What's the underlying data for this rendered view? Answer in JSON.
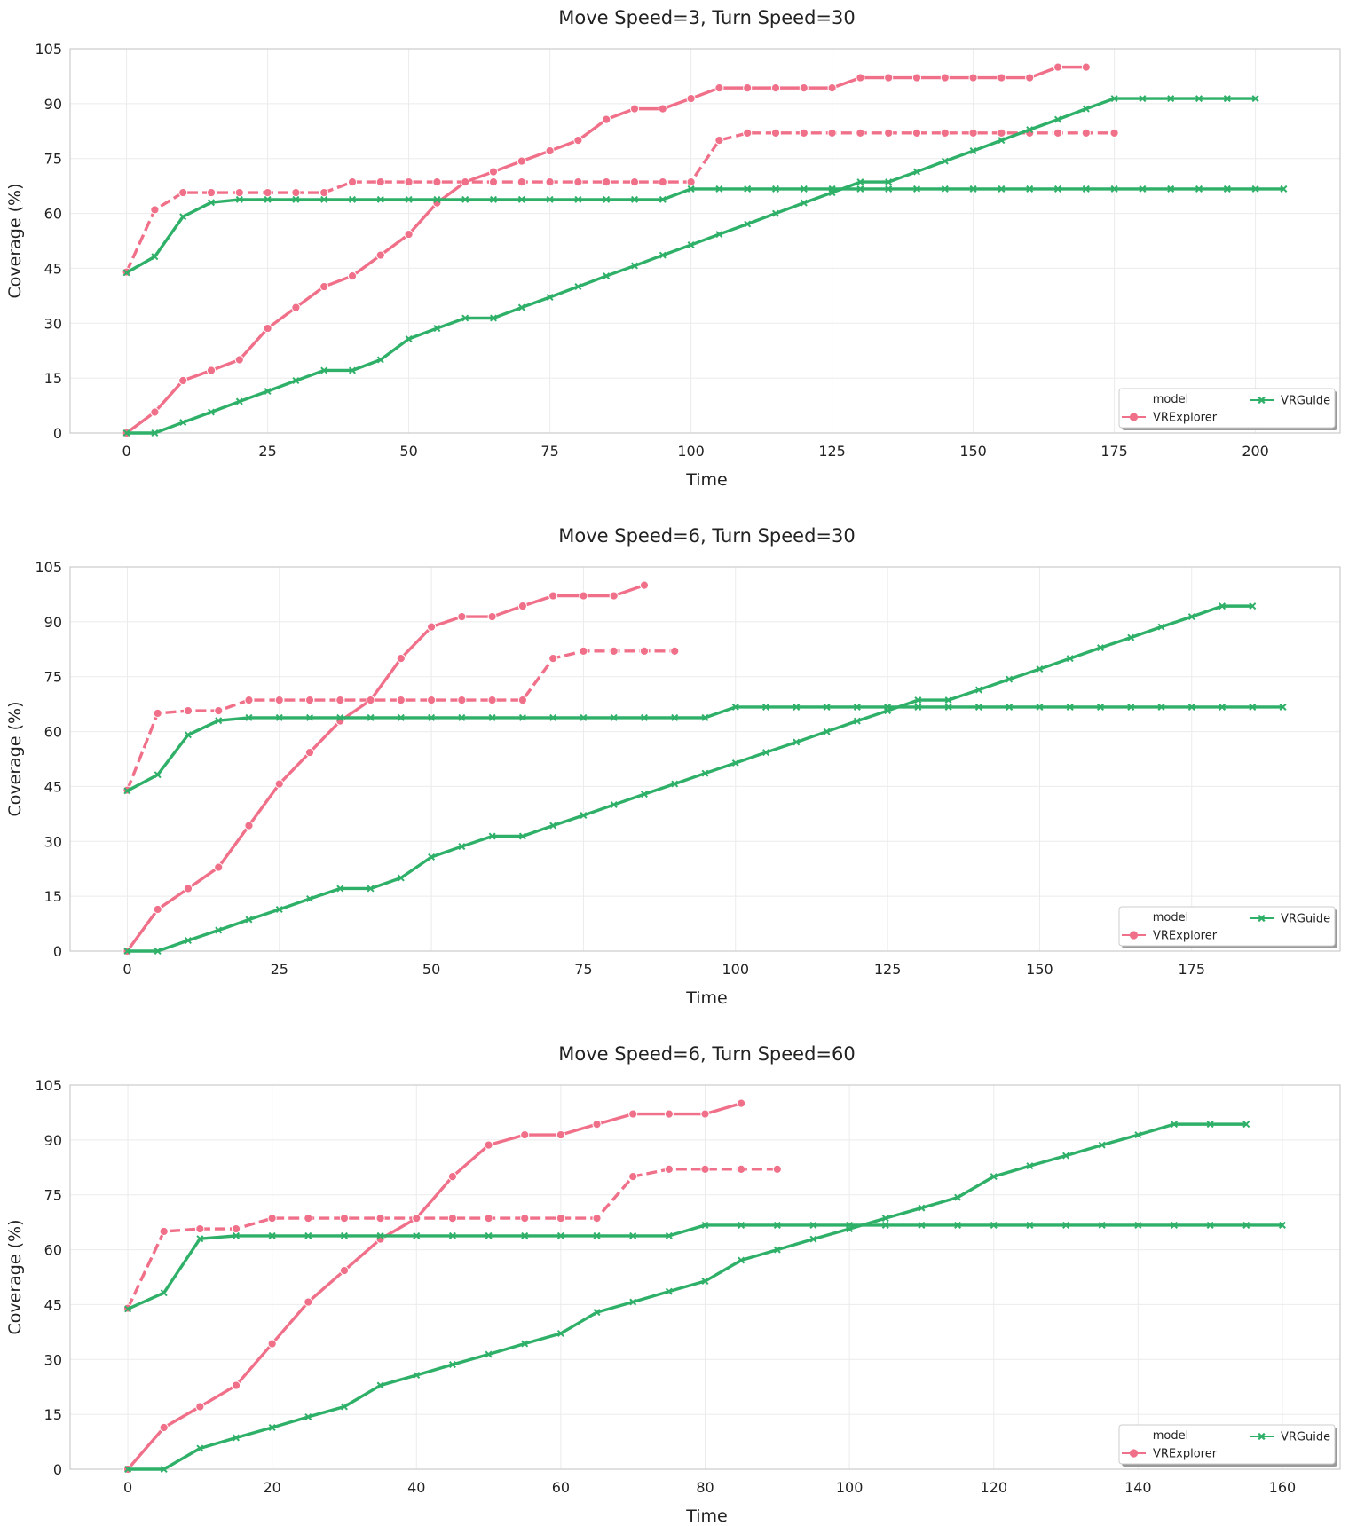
{
  "chart_data": [
    {
      "type": "line",
      "title": "Move Speed=3, Turn Speed=30",
      "xlabel": "Time",
      "ylabel": "Coverage (%)",
      "xlim": [
        -10,
        215
      ],
      "ylim": [
        0,
        105
      ],
      "xticks": [
        0,
        25,
        50,
        75,
        100,
        125,
        150,
        175,
        200
      ],
      "yticks": [
        0,
        15,
        30,
        45,
        60,
        75,
        90,
        105
      ],
      "grid": true,
      "legend": {
        "title": "model",
        "placement": "lower-right",
        "entries": [
          "VRExplorer",
          "VRGuide"
        ]
      },
      "series": [
        {
          "model": "VRExplorer",
          "color": "#f0708a",
          "marker": "circle",
          "linestyle": "solid",
          "x": [
            0,
            5,
            10,
            15,
            20,
            25,
            30,
            35,
            40,
            45,
            50,
            55,
            60,
            65,
            70,
            75,
            80,
            85,
            90,
            95,
            100,
            105,
            110,
            115,
            120,
            125,
            130,
            135,
            140,
            145,
            150,
            155,
            160,
            165,
            170
          ],
          "y": [
            0,
            5.7,
            14.3,
            17.1,
            20,
            28.6,
            34.3,
            40,
            42.9,
            48.6,
            54.3,
            62.9,
            68.6,
            71.4,
            74.3,
            77.1,
            80,
            85.7,
            88.6,
            88.6,
            91.4,
            94.3,
            94.3,
            94.3,
            94.3,
            94.3,
            97.1,
            97.1,
            97.1,
            97.1,
            97.1,
            97.1,
            97.1,
            100,
            100
          ]
        },
        {
          "model": "VRExplorer",
          "color": "#f0708a",
          "marker": "circle",
          "linestyle": "dashed",
          "x": [
            0,
            5,
            10,
            15,
            20,
            25,
            30,
            35,
            40,
            45,
            50,
            55,
            60,
            65,
            70,
            75,
            80,
            85,
            90,
            95,
            100,
            105,
            110,
            115,
            120,
            125,
            130,
            135,
            140,
            145,
            150,
            155,
            160,
            165,
            170,
            175
          ],
          "y": [
            44,
            61,
            65.7,
            65.7,
            65.7,
            65.7,
            65.7,
            65.7,
            68.6,
            68.6,
            68.6,
            68.6,
            68.6,
            68.6,
            68.6,
            68.6,
            68.6,
            68.6,
            68.6,
            68.6,
            68.6,
            80,
            82,
            82,
            82,
            82,
            82,
            82,
            82,
            82,
            82,
            82,
            82,
            82,
            82,
            82
          ]
        },
        {
          "model": "VRGuide",
          "color": "#2fb068",
          "marker": "x",
          "linestyle": "solid",
          "x": [
            0,
            5,
            10,
            15,
            20,
            25,
            30,
            35,
            40,
            45,
            50,
            55,
            60,
            65,
            70,
            75,
            80,
            85,
            90,
            95,
            100,
            105,
            110,
            115,
            120,
            125,
            130,
            135,
            140,
            145,
            150,
            155,
            160,
            165,
            170,
            175,
            180,
            185,
            190,
            195,
            200
          ],
          "y": [
            0,
            0,
            2.9,
            5.7,
            8.6,
            11.4,
            14.3,
            17.1,
            17.1,
            20,
            25.7,
            28.6,
            31.4,
            31.4,
            34.3,
            37.1,
            40,
            42.9,
            45.7,
            48.6,
            51.4,
            54.3,
            57.1,
            60,
            62.9,
            65.7,
            68.6,
            68.6,
            71.4,
            74.3,
            77.1,
            80,
            82.9,
            85.7,
            88.6,
            91.4,
            91.4,
            91.4,
            91.4,
            91.4,
            91.4
          ]
        },
        {
          "model": "VRGuide",
          "color": "#2fb068",
          "marker": "x",
          "linestyle": "solid",
          "x": [
            0,
            5,
            10,
            15,
            20,
            25,
            30,
            35,
            40,
            45,
            50,
            55,
            60,
            65,
            70,
            75,
            80,
            85,
            90,
            95,
            100,
            105,
            110,
            115,
            120,
            125,
            130,
            135,
            140,
            145,
            150,
            155,
            160,
            165,
            170,
            175,
            180,
            185,
            190,
            195,
            200,
            205
          ],
          "y": [
            43.8,
            48.2,
            59.1,
            63,
            63.8,
            63.8,
            63.8,
            63.8,
            63.8,
            63.8,
            63.8,
            63.8,
            63.8,
            63.8,
            63.8,
            63.8,
            63.8,
            63.8,
            63.8,
            63.8,
            66.7,
            66.7,
            66.7,
            66.7,
            66.7,
            66.7,
            66.7,
            66.7,
            66.7,
            66.7,
            66.7,
            66.7,
            66.7,
            66.7,
            66.7,
            66.7,
            66.7,
            66.7,
            66.7,
            66.7,
            66.7,
            66.7
          ]
        }
      ]
    },
    {
      "type": "line",
      "title": "Move Speed=6, Turn Speed=30",
      "xlabel": "Time",
      "ylabel": "Coverage (%)",
      "xlim": [
        -9.4,
        199.4
      ],
      "ylim": [
        0,
        105
      ],
      "xticks": [
        0,
        25,
        50,
        75,
        100,
        125,
        150,
        175
      ],
      "yticks": [
        0,
        15,
        30,
        45,
        60,
        75,
        90,
        105
      ],
      "grid": true,
      "legend": {
        "title": "model",
        "placement": "lower-right",
        "entries": [
          "VRExplorer",
          "VRGuide"
        ]
      },
      "series": [
        {
          "model": "VRExplorer",
          "color": "#f0708a",
          "marker": "circle",
          "linestyle": "solid",
          "x": [
            0,
            5,
            10,
            15,
            20,
            25,
            30,
            35,
            40,
            45,
            50,
            55,
            60,
            65,
            70,
            75,
            80,
            85
          ],
          "y": [
            0,
            11.4,
            17.1,
            22.9,
            34.3,
            45.7,
            54.3,
            62.9,
            68.6,
            80,
            88.6,
            91.4,
            91.4,
            94.3,
            97.1,
            97.1,
            97.1,
            100
          ]
        },
        {
          "model": "VRExplorer",
          "color": "#f0708a",
          "marker": "circle",
          "linestyle": "dashed",
          "x": [
            0,
            5,
            10,
            15,
            20,
            25,
            30,
            35,
            40,
            45,
            50,
            55,
            60,
            65,
            70,
            75,
            80,
            85,
            90
          ],
          "y": [
            44,
            65,
            65.7,
            65.7,
            68.6,
            68.6,
            68.6,
            68.6,
            68.6,
            68.6,
            68.6,
            68.6,
            68.6,
            68.6,
            80,
            82,
            82,
            82,
            82
          ]
        },
        {
          "model": "VRGuide",
          "color": "#2fb068",
          "marker": "x",
          "linestyle": "solid",
          "x": [
            0,
            5,
            10,
            15,
            20,
            25,
            30,
            35,
            40,
            45,
            50,
            55,
            60,
            65,
            70,
            75,
            80,
            85,
            90,
            95,
            100,
            105,
            110,
            115,
            120,
            125,
            130,
            135,
            140,
            145,
            150,
            155,
            160,
            165,
            170,
            175,
            180,
            185
          ],
          "y": [
            0,
            0,
            2.9,
            5.7,
            8.6,
            11.4,
            14.3,
            17.1,
            17.1,
            20,
            25.7,
            28.6,
            31.4,
            31.4,
            34.3,
            37.1,
            40,
            42.9,
            45.7,
            48.6,
            51.4,
            54.3,
            57.1,
            60,
            62.9,
            65.7,
            68.6,
            68.6,
            71.4,
            74.3,
            77.1,
            80,
            82.9,
            85.7,
            88.6,
            91.4,
            94.3,
            94.3
          ]
        },
        {
          "model": "VRGuide",
          "color": "#2fb068",
          "marker": "x",
          "linestyle": "solid",
          "x": [
            0,
            5,
            10,
            15,
            20,
            25,
            30,
            35,
            40,
            45,
            50,
            55,
            60,
            65,
            70,
            75,
            80,
            85,
            90,
            95,
            100,
            105,
            110,
            115,
            120,
            125,
            130,
            135,
            140,
            145,
            150,
            155,
            160,
            165,
            170,
            175,
            180,
            185,
            190
          ],
          "y": [
            43.8,
            48.2,
            59.1,
            63,
            63.8,
            63.8,
            63.8,
            63.8,
            63.8,
            63.8,
            63.8,
            63.8,
            63.8,
            63.8,
            63.8,
            63.8,
            63.8,
            63.8,
            63.8,
            63.8,
            66.7,
            66.7,
            66.7,
            66.7,
            66.7,
            66.7,
            66.7,
            66.7,
            66.7,
            66.7,
            66.7,
            66.7,
            66.7,
            66.7,
            66.7,
            66.7,
            66.7,
            66.7,
            66.7
          ]
        }
      ]
    },
    {
      "type": "line",
      "title": "Move Speed=6, Turn Speed=60",
      "xlabel": "Time",
      "ylabel": "Coverage (%)",
      "xlim": [
        -8,
        168
      ],
      "ylim": [
        0,
        105
      ],
      "xticks": [
        0,
        20,
        40,
        60,
        80,
        100,
        120,
        140,
        160
      ],
      "yticks": [
        0,
        15,
        30,
        45,
        60,
        75,
        90,
        105
      ],
      "grid": true,
      "legend": {
        "title": "model",
        "placement": "lower-right",
        "entries": [
          "VRExplorer",
          "VRGuide"
        ]
      },
      "series": [
        {
          "model": "VRExplorer",
          "color": "#f0708a",
          "marker": "circle",
          "linestyle": "solid",
          "x": [
            0,
            5,
            10,
            15,
            20,
            25,
            30,
            35,
            40,
            45,
            50,
            55,
            60,
            65,
            70,
            75,
            80,
            85
          ],
          "y": [
            0,
            11.4,
            17.1,
            22.9,
            34.3,
            45.7,
            54.3,
            62.9,
            68.6,
            80,
            88.6,
            91.4,
            91.4,
            94.3,
            97.1,
            97.1,
            97.1,
            100
          ]
        },
        {
          "model": "VRExplorer",
          "color": "#f0708a",
          "marker": "circle",
          "linestyle": "dashed",
          "x": [
            0,
            5,
            10,
            15,
            20,
            25,
            30,
            35,
            40,
            45,
            50,
            55,
            60,
            65,
            70,
            75,
            80,
            85,
            90
          ],
          "y": [
            44,
            65,
            65.7,
            65.7,
            68.6,
            68.6,
            68.6,
            68.6,
            68.6,
            68.6,
            68.6,
            68.6,
            68.6,
            68.6,
            80,
            82,
            82,
            82,
            82
          ]
        },
        {
          "model": "VRGuide",
          "color": "#2fb068",
          "marker": "x",
          "linestyle": "solid",
          "x": [
            0,
            5,
            10,
            15,
            20,
            25,
            30,
            35,
            40,
            45,
            50,
            55,
            60,
            65,
            70,
            75,
            80,
            85,
            90,
            95,
            100,
            105,
            110,
            115,
            120,
            125,
            130,
            135,
            140,
            145,
            150,
            155
          ],
          "y": [
            0,
            0,
            5.7,
            8.6,
            11.4,
            14.3,
            17.1,
            22.9,
            25.7,
            28.6,
            31.4,
            34.3,
            37.1,
            42.9,
            45.7,
            48.6,
            51.4,
            57.1,
            60,
            62.9,
            65.7,
            68.6,
            71.4,
            74.3,
            80,
            82.9,
            85.7,
            88.6,
            91.4,
            94.3,
            94.3,
            94.3
          ]
        },
        {
          "model": "VRGuide",
          "color": "#2fb068",
          "marker": "x",
          "linestyle": "solid",
          "x": [
            0,
            5,
            10,
            15,
            20,
            25,
            30,
            35,
            40,
            45,
            50,
            55,
            60,
            65,
            70,
            75,
            80,
            85,
            90,
            95,
            100,
            105,
            110,
            115,
            120,
            125,
            130,
            135,
            140,
            145,
            150,
            155,
            160
          ],
          "y": [
            43.8,
            48.2,
            63,
            63.8,
            63.8,
            63.8,
            63.8,
            63.8,
            63.8,
            63.8,
            63.8,
            63.8,
            63.8,
            63.8,
            63.8,
            63.8,
            66.7,
            66.7,
            66.7,
            66.7,
            66.7,
            66.7,
            66.7,
            66.7,
            66.7,
            66.7,
            66.7,
            66.7,
            66.7,
            66.7,
            66.7,
            66.7,
            66.7
          ]
        }
      ]
    }
  ]
}
